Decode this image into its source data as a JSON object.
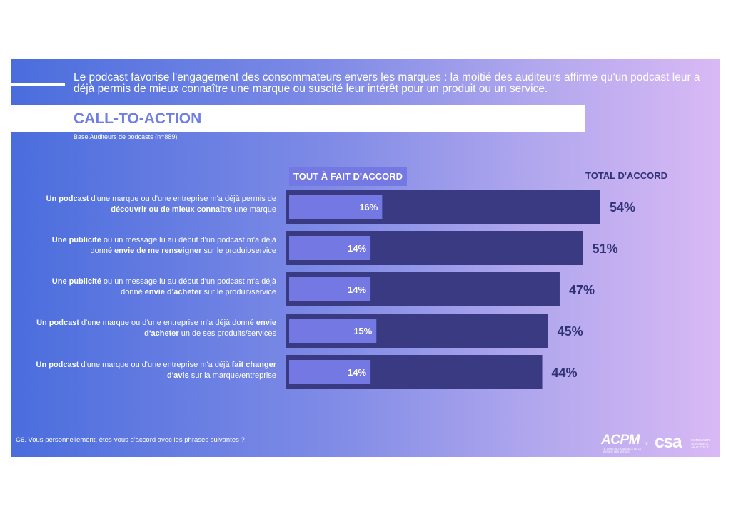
{
  "headline": "Le podcast favorise l'engagement des consommateurs envers les marques : la moitié des auditeurs affirme qu'un podcast leur a déjà permis de mieux connaître une marque ou suscité leur intérêt pour un produit ou un service.",
  "section_title": "CALL-TO-ACTION",
  "base_note": "Base Auditeurs de podcasts (n=889)",
  "legend": {
    "inner_label": "TOUT À FAIT D'ACCORD",
    "total_label": "TOTAL D'ACCORD"
  },
  "rows": [
    {
      "label_parts": [
        {
          "t": "Un podcast",
          "b": true
        },
        {
          "t": " d'une marque ou d'une entreprise m'a déjà permis de "
        },
        {
          "t": "découvrir ou de mieux connaître",
          "b": true
        },
        {
          "t": " une marque"
        }
      ]
    },
    {
      "label_parts": [
        {
          "t": "Une publicité",
          "b": true
        },
        {
          "t": " ou un message lu au début d'un podcast m'a déjà donné "
        },
        {
          "t": "envie de me renseigner",
          "b": true
        },
        {
          "t": " sur le produit/service"
        }
      ]
    },
    {
      "label_parts": [
        {
          "t": "Une publicité",
          "b": true
        },
        {
          "t": " ou un message lu au début d'un podcast m'a déjà donné "
        },
        {
          "t": "envie d'acheter",
          "b": true
        },
        {
          "t": " sur le produit/service"
        }
      ]
    },
    {
      "label_parts": [
        {
          "t": "Un podcast",
          "b": true
        },
        {
          "t": " d'une marque ou d'une entreprise m'a déjà donné "
        },
        {
          "t": "envie d'acheter",
          "b": true
        },
        {
          "t": " un de ses produits/services"
        }
      ]
    },
    {
      "label_parts": [
        {
          "t": "Un podcast",
          "b": true
        },
        {
          "t": " d'une marque ou d'une entreprise m'a déjà "
        },
        {
          "t": "fait changer d'avis",
          "b": true
        },
        {
          "t": " sur la marque/entreprise"
        }
      ]
    }
  ],
  "chart_data": {
    "type": "bar",
    "orientation": "horizontal",
    "categories": [
      "Un podcast d'une marque ou d'une entreprise m'a déjà permis de découvrir ou de mieux connaître une marque",
      "Une publicité ou un message lu au début d'un podcast m'a déjà donné envie de me renseigner sur le produit/service",
      "Une publicité ou un message lu au début d'un podcast m'a déjà donné envie d'acheter sur le produit/service",
      "Un podcast d'une marque ou d'une entreprise m'a déjà donné envie d'acheter un de ses produits/services",
      "Un podcast d'une marque ou d'une entreprise m'a déjà fait changer d'avis sur la marque/entreprise"
    ],
    "series": [
      {
        "name": "TOTAL D'ACCORD",
        "values": [
          54,
          51,
          47,
          45,
          44
        ],
        "color": "#3a3a82"
      },
      {
        "name": "TOUT À FAIT D'ACCORD",
        "values": [
          16,
          14,
          14,
          15,
          14
        ],
        "color": "#7378e2"
      }
    ],
    "value_labels_total": [
      "54%",
      "51%",
      "47%",
      "45%",
      "44%"
    ],
    "value_labels_inner": [
      "16%",
      "14%",
      "14%",
      "15%",
      "14%"
    ],
    "xlim": [
      0,
      54
    ],
    "grid": false
  },
  "footer_question": "C6. Vous personnellement, êtes-vous d'accord avec les phrases suivantes ?",
  "logos": {
    "acpm": "ACPM",
    "acpm_tagline": "LE TIERS DE CONFIANCE DE LA MESURE DES MÉDIAS",
    "separator": "x",
    "csa": "csa",
    "csa_tagline": "CONSUMER SCIENCE & ANALYTICS"
  }
}
